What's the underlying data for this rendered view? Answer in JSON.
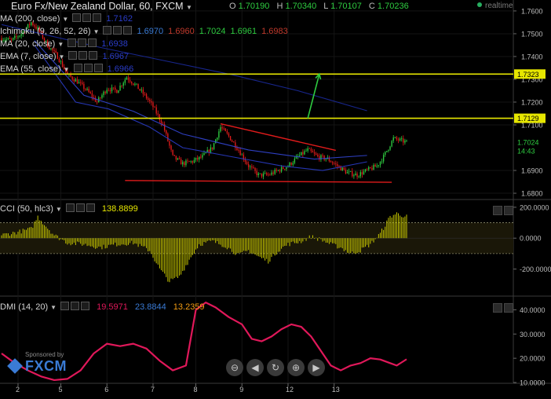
{
  "header": {
    "title": "Euro Fx/New Zealand Dollar, 60, FXCM",
    "ohlc": [
      {
        "label": "O",
        "value": "1.70190"
      },
      {
        "label": "H",
        "value": "1.70340"
      },
      {
        "label": "L",
        "value": "1.70107"
      },
      {
        "label": "C",
        "value": "1.70236"
      }
    ],
    "realtime_label": "realtime"
  },
  "indicators": [
    {
      "name": "MA (200, close)",
      "values": [
        "1.7162"
      ],
      "colors": [
        "#2a3cc7"
      ]
    },
    {
      "name": "Ichimoku (9, 26, 52, 26)",
      "values": [
        "1.6970",
        "1.6960",
        "1.7024",
        "1.6961",
        "1.6983"
      ],
      "colors": [
        "#3a7bd5",
        "#c0392b",
        "#2ecc40",
        "#2ecc40",
        "#c0392b"
      ]
    },
    {
      "name": "MA (20, close)",
      "values": [
        "1.6938"
      ],
      "colors": [
        "#2a3cc7"
      ]
    },
    {
      "name": "EMA (7, close)",
      "values": [
        "1.6967"
      ],
      "colors": [
        "#2a3cc7"
      ]
    },
    {
      "name": "EMA (55, close)",
      "values": [
        "1.6966"
      ],
      "colors": [
        "#2a3cc7"
      ]
    }
  ],
  "price_axis": {
    "ticks": [
      "1.7600",
      "1.7500",
      "1.7400",
      "1.7300",
      "1.7200",
      "1.7100",
      "1.6900",
      "1.6800"
    ],
    "labels": [
      {
        "text": "1.7323",
        "kind": "resistance"
      },
      {
        "text": "1.7129",
        "kind": "support"
      },
      {
        "text": "1.7024",
        "kind": "last"
      },
      {
        "text": "14:43",
        "kind": "countdown"
      }
    ]
  },
  "cci": {
    "name": "CCI (50, hlc3)",
    "value": "138.8899",
    "ticks": [
      "200.0000",
      "0.0000",
      "-200.0000"
    ]
  },
  "dmi": {
    "name": "DMI (14, 20)",
    "values": [
      "19.5971",
      "23.8844",
      "13.2359"
    ],
    "colors": [
      "#e0185a",
      "#3a7bd5",
      "#f39c12"
    ],
    "ticks": [
      "40.0000",
      "30.0000",
      "20.0000",
      "10.0000"
    ]
  },
  "time_axis": [
    "2",
    "5",
    "6",
    "7",
    "8",
    "9",
    "12",
    "13"
  ],
  "navigation": [
    "⊖",
    "◀",
    "↻",
    "⊕",
    "▶"
  ],
  "sponsor": {
    "label": "Sponsored by",
    "brand": "FXCM"
  },
  "chart_data": [
    {
      "type": "candlestick",
      "title": "Euro Fx/New Zealand Dollar, 60, FXCM",
      "ylim": [
        1.6776,
        1.7648
      ],
      "x_tick_labels": [
        "2",
        "5",
        "6",
        "7",
        "8",
        "9",
        "12",
        "13"
      ],
      "last_close": 1.70236,
      "horizontal_levels": [
        {
          "value": 1.7323,
          "color": "#e6e600"
        },
        {
          "value": 1.7129,
          "color": "#e6e600"
        }
      ],
      "trendlines": [
        {
          "from": [
            133,
            1.7105
          ],
          "to": [
            203,
            1.6988
          ],
          "color": "#e01b1b"
        },
        {
          "from": [
            75,
            1.6856
          ],
          "to": [
            237,
            1.6848
          ],
          "color": "#e01b1b"
        }
      ],
      "arrows": [
        {
          "from": [
            186,
            1.7129
          ],
          "to": [
            193,
            1.7323
          ],
          "color": "#2ecc40"
        }
      ],
      "series": [
        {
          "name": "MA (200, close)",
          "values": [
            [
              0,
              1.754
            ],
            [
              30,
              1.749
            ],
            [
              60,
              1.744
            ],
            [
              100,
              1.738
            ],
            [
              140,
              1.732
            ],
            [
              180,
              1.725
            ],
            [
              222,
              1.7162
            ]
          ]
        },
        {
          "name": "MA (20, close)",
          "values": [
            [
              20,
              1.745
            ],
            [
              45,
              1.72
            ],
            [
              65,
              1.717
            ],
            [
              90,
              1.709
            ],
            [
              110,
              1.7
            ],
            [
              140,
              1.696
            ],
            [
              170,
              1.692
            ],
            [
              195,
              1.69
            ],
            [
              222,
              1.6938
            ]
          ]
        },
        {
          "name": "EMA (55, close)",
          "values": [
            [
              20,
              1.747
            ],
            [
              50,
              1.723
            ],
            [
              80,
              1.716
            ],
            [
              110,
              1.706
            ],
            [
              150,
              1.699
            ],
            [
              190,
              1.695
            ],
            [
              222,
              1.6966
            ]
          ]
        }
      ]
    },
    {
      "type": "bar",
      "title": "CCI (50, hlc3)",
      "ylim": [
        -370,
        240
      ],
      "reference_lines": [
        100,
        -100
      ],
      "last_value": 138.8899
    },
    {
      "type": "line",
      "title": "DMI (14, 20)",
      "ylim": [
        10,
        45
      ],
      "series": [
        {
          "name": "DMI",
          "values": [
            [
              0,
              22
            ],
            [
              8,
              18
            ],
            [
              16,
              15
            ],
            [
              24,
              12.5
            ],
            [
              32,
              11
            ],
            [
              40,
              11.5
            ],
            [
              48,
              15
            ],
            [
              56,
              22
            ],
            [
              64,
              26
            ],
            [
              72,
              25
            ],
            [
              80,
              26
            ],
            [
              88,
              24
            ],
            [
              96,
              19
            ],
            [
              104,
              15
            ],
            [
              112,
              17
            ],
            [
              118,
              40
            ],
            [
              124,
              43
            ],
            [
              130,
              41
            ],
            [
              138,
              37
            ],
            [
              146,
              34
            ],
            [
              152,
              28
            ],
            [
              158,
              27
            ],
            [
              164,
              29
            ],
            [
              170,
              32
            ],
            [
              176,
              34
            ],
            [
              182,
              33
            ],
            [
              188,
              29
            ],
            [
              194,
              23
            ],
            [
              200,
              17
            ],
            [
              206,
              15
            ],
            [
              212,
              17
            ],
            [
              218,
              18
            ],
            [
              224,
              20
            ],
            [
              230,
              19.5
            ],
            [
              236,
              18
            ],
            [
              240,
              17
            ],
            [
              246,
              19.6
            ]
          ]
        }
      ]
    }
  ]
}
